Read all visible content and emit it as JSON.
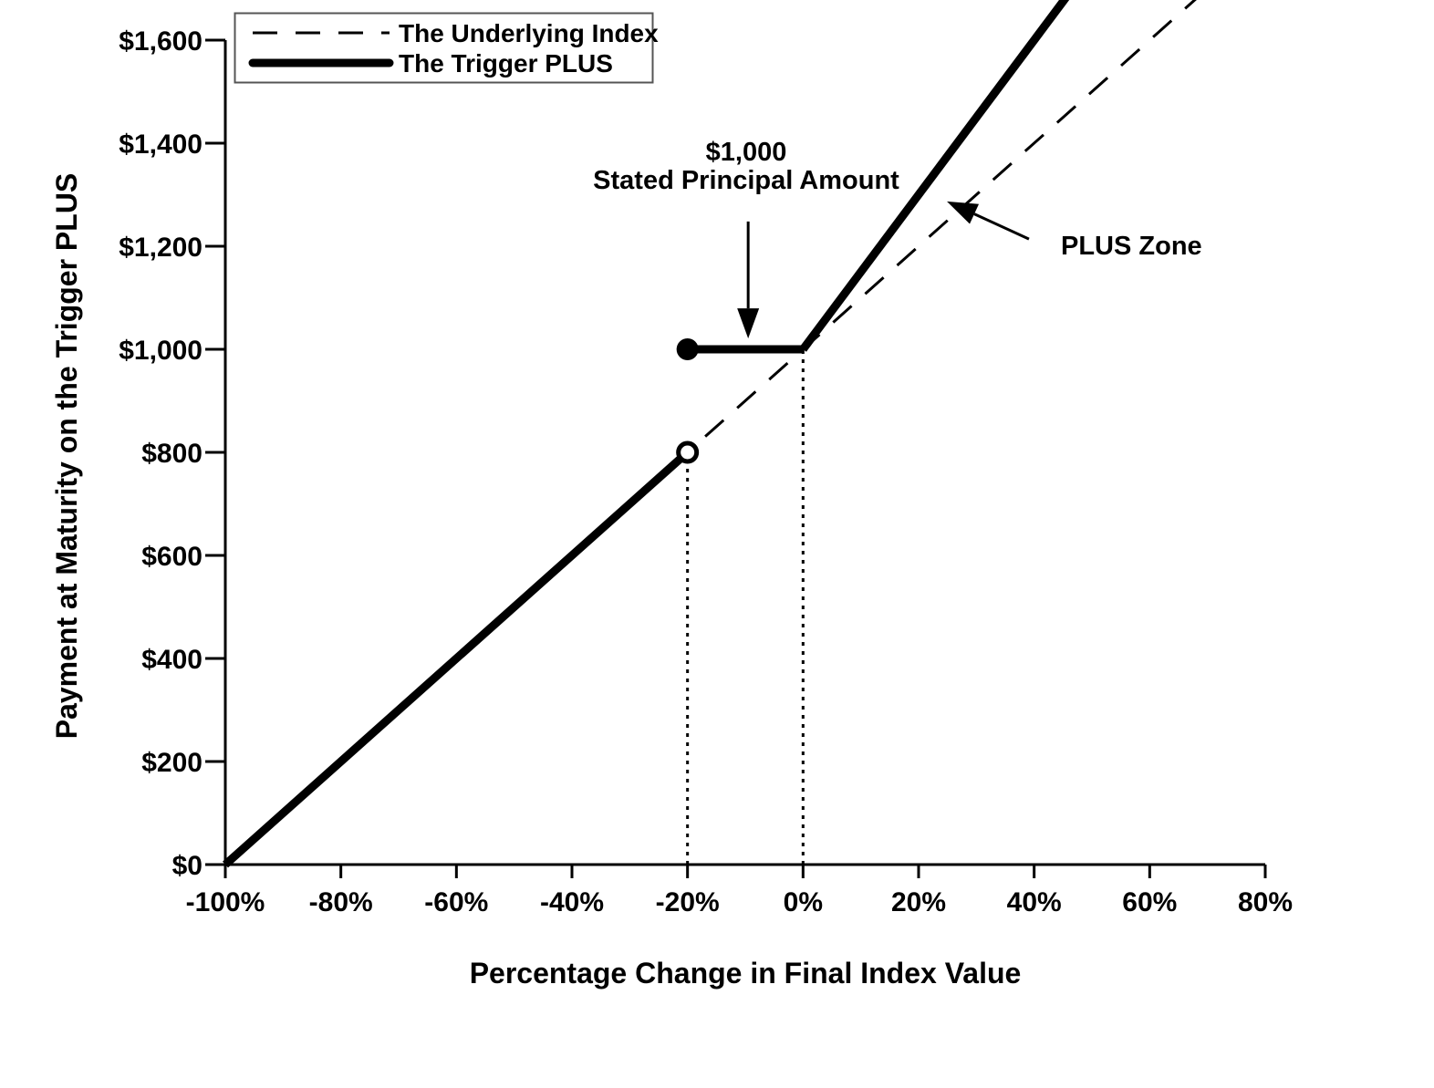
{
  "figure": {
    "background": "#ffffff",
    "ink": "#000000"
  },
  "chart_data": {
    "type": "line",
    "title": "",
    "xlabel": "Percentage Change in Final Index Value",
    "ylabel": "Payment at Maturity on the Trigger PLUS",
    "xlim": [
      -100,
      80
    ],
    "ylim": [
      0,
      1600
    ],
    "grid": false,
    "x_ticks": [
      {
        "value": -100,
        "label": "-100%"
      },
      {
        "value": -80,
        "label": "-80%"
      },
      {
        "value": -60,
        "label": "-60%"
      },
      {
        "value": -40,
        "label": "-40%"
      },
      {
        "value": -20,
        "label": "-20%"
      },
      {
        "value": 0,
        "label": "0%"
      },
      {
        "value": 20,
        "label": "20%"
      },
      {
        "value": 40,
        "label": "40%"
      },
      {
        "value": 60,
        "label": "60%"
      },
      {
        "value": 80,
        "label": "80%"
      }
    ],
    "y_ticks": [
      {
        "value": 0,
        "label": "$0"
      },
      {
        "value": 200,
        "label": "$200"
      },
      {
        "value": 400,
        "label": "$400"
      },
      {
        "value": 600,
        "label": "$600"
      },
      {
        "value": 800,
        "label": "$800"
      },
      {
        "value": 1000,
        "label": "$1,000"
      },
      {
        "value": 1200,
        "label": "$1,200"
      },
      {
        "value": 1400,
        "label": "$1,400"
      },
      {
        "value": 1600,
        "label": "$1,600"
      }
    ],
    "legend": {
      "position": "top-left",
      "entries": [
        {
          "name": "The Underlying Index",
          "style": "dashed"
        },
        {
          "name": "The Trigger PLUS",
          "style": "thick-solid"
        }
      ]
    },
    "series": [
      {
        "name": "The Underlying Index",
        "style": "dashed",
        "points": [
          [
            -100,
            0
          ],
          [
            80,
            1800
          ]
        ]
      },
      {
        "name": "The Trigger PLUS",
        "style": "thick-solid",
        "segments": [
          {
            "points": [
              [
                -100,
                0
              ],
              [
                -20,
                800
              ]
            ]
          },
          {
            "points": [
              [
                -20,
                1000
              ],
              [
                0,
                1000
              ]
            ]
          },
          {
            "points": [
              [
                0,
                1000
              ],
              [
                50,
                1750
              ]
            ]
          }
        ],
        "markers": [
          {
            "x": -20,
            "y": 800,
            "type": "open"
          },
          {
            "x": -20,
            "y": 1000,
            "type": "filled"
          }
        ]
      }
    ],
    "guide_lines": [
      {
        "x": -20,
        "from": 0,
        "to": 800
      },
      {
        "x": 0,
        "from": 0,
        "to": 1000
      }
    ],
    "annotations": [
      {
        "id": "stated-principal",
        "lines": [
          "$1,000",
          "Stated Principal Amount"
        ],
        "arrow": {
          "from": {
            "x": -9.5,
            "y": 1248
          },
          "to": {
            "x": -9.5,
            "y": 1021
          }
        }
      },
      {
        "id": "plus-zone",
        "lines": [
          "PLUS Zone"
        ],
        "arrow": {
          "from": {
            "x": 39.1,
            "y": 1214
          },
          "to": {
            "x": 24.9,
            "y": 1287
          }
        }
      }
    ]
  }
}
